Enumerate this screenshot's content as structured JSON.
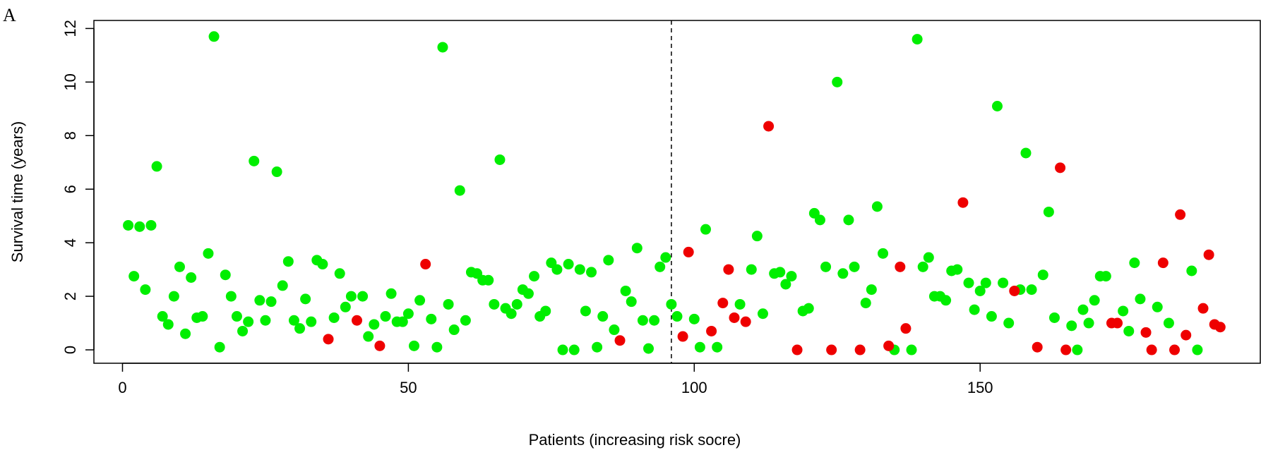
{
  "panel_label": "A",
  "chart_data": {
    "type": "scatter",
    "title": "",
    "xlabel": "Patients (increasing risk socre)",
    "ylabel": "Survival time (years)",
    "xlim": [
      -5,
      199
    ],
    "ylim": [
      -0.5,
      12.3
    ],
    "xticks": [
      0,
      50,
      100,
      150
    ],
    "yticks": [
      0,
      2,
      4,
      6,
      8,
      10,
      12
    ],
    "grid": false,
    "legend": "none",
    "cutoff_x": 96,
    "colors": {
      "green": "#00ee00",
      "red": "#ee0000"
    },
    "series": [
      {
        "color": "green",
        "points": [
          [
            1,
            4.65
          ],
          [
            2,
            2.75
          ],
          [
            3,
            4.6
          ],
          [
            4,
            2.25
          ],
          [
            5,
            4.65
          ],
          [
            6,
            6.85
          ],
          [
            7,
            1.25
          ],
          [
            8,
            0.95
          ],
          [
            9,
            2.0
          ],
          [
            10,
            3.1
          ],
          [
            11,
            0.6
          ],
          [
            12,
            2.7
          ],
          [
            13,
            1.2
          ],
          [
            14,
            1.25
          ],
          [
            15,
            3.6
          ],
          [
            16,
            11.7
          ],
          [
            17,
            0.1
          ],
          [
            18,
            2.8
          ],
          [
            19,
            2.0
          ],
          [
            20,
            1.25
          ],
          [
            21,
            0.7
          ],
          [
            22,
            1.05
          ],
          [
            23,
            7.05
          ],
          [
            24,
            1.85
          ],
          [
            25,
            1.1
          ],
          [
            26,
            1.8
          ],
          [
            27,
            6.65
          ],
          [
            28,
            2.4
          ],
          [
            29,
            3.3
          ],
          [
            30,
            1.1
          ],
          [
            31,
            0.8
          ],
          [
            32,
            1.9
          ],
          [
            33,
            1.05
          ],
          [
            34,
            3.35
          ],
          [
            35,
            3.2
          ],
          [
            37,
            1.2
          ],
          [
            38,
            2.85
          ],
          [
            39,
            1.6
          ],
          [
            40,
            2.0
          ],
          [
            42,
            2.0
          ],
          [
            43,
            0.5
          ],
          [
            44,
            0.95
          ],
          [
            46,
            1.25
          ],
          [
            47,
            2.1
          ],
          [
            48,
            1.05
          ],
          [
            49,
            1.05
          ],
          [
            50,
            1.35
          ],
          [
            51,
            0.15
          ],
          [
            52,
            1.85
          ],
          [
            54,
            1.15
          ],
          [
            55,
            0.1
          ],
          [
            56,
            11.3
          ],
          [
            57,
            1.7
          ],
          [
            58,
            0.75
          ],
          [
            59,
            5.95
          ],
          [
            60,
            1.1
          ],
          [
            61,
            2.9
          ],
          [
            62,
            2.85
          ],
          [
            63,
            2.6
          ],
          [
            64,
            2.6
          ],
          [
            65,
            1.7
          ],
          [
            66,
            7.1
          ],
          [
            67,
            1.55
          ],
          [
            68,
            1.35
          ],
          [
            69,
            1.7
          ],
          [
            70,
            2.25
          ],
          [
            71,
            2.1
          ],
          [
            72,
            2.75
          ],
          [
            73,
            1.25
          ],
          [
            74,
            1.45
          ],
          [
            75,
            3.25
          ],
          [
            76,
            3.0
          ],
          [
            77,
            0.0
          ],
          [
            78,
            3.2
          ],
          [
            79,
            0.0
          ],
          [
            80,
            3.0
          ],
          [
            81,
            1.45
          ],
          [
            82,
            2.9
          ],
          [
            83,
            0.1
          ],
          [
            84,
            1.25
          ],
          [
            85,
            3.35
          ],
          [
            86,
            0.75
          ],
          [
            88,
            2.2
          ],
          [
            89,
            1.8
          ],
          [
            90,
            3.8
          ],
          [
            91,
            1.1
          ],
          [
            92,
            0.05
          ],
          [
            93,
            1.1
          ],
          [
            94,
            3.1
          ],
          [
            95,
            3.45
          ],
          [
            96,
            1.7
          ],
          [
            97,
            1.25
          ],
          [
            100,
            1.15
          ],
          [
            101,
            0.1
          ],
          [
            102,
            4.5
          ],
          [
            104,
            0.1
          ],
          [
            108,
            1.7
          ],
          [
            110,
            3.0
          ],
          [
            111,
            4.25
          ],
          [
            112,
            1.35
          ],
          [
            114,
            2.85
          ],
          [
            115,
            2.9
          ],
          [
            116,
            2.45
          ],
          [
            117,
            2.75
          ],
          [
            119,
            1.45
          ],
          [
            120,
            1.55
          ],
          [
            121,
            5.1
          ],
          [
            122,
            4.85
          ],
          [
            123,
            3.1
          ],
          [
            125,
            10.0
          ],
          [
            126,
            2.85
          ],
          [
            127,
            4.85
          ],
          [
            128,
            3.1
          ],
          [
            130,
            1.75
          ],
          [
            131,
            2.25
          ],
          [
            132,
            5.35
          ],
          [
            133,
            3.6
          ],
          [
            135,
            0.0
          ],
          [
            138,
            0.0
          ],
          [
            139,
            11.6
          ],
          [
            140,
            3.1
          ],
          [
            141,
            3.45
          ],
          [
            142,
            2.0
          ],
          [
            143,
            2.0
          ],
          [
            144,
            1.85
          ],
          [
            145,
            2.95
          ],
          [
            146,
            3.0
          ],
          [
            148,
            2.5
          ],
          [
            149,
            1.5
          ],
          [
            150,
            2.2
          ],
          [
            151,
            2.5
          ],
          [
            152,
            1.25
          ],
          [
            153,
            9.1
          ],
          [
            154,
            2.5
          ],
          [
            155,
            1.0
          ],
          [
            157,
            2.25
          ],
          [
            158,
            7.35
          ],
          [
            159,
            2.25
          ],
          [
            161,
            2.8
          ],
          [
            162,
            5.15
          ],
          [
            163,
            1.2
          ],
          [
            166,
            0.9
          ],
          [
            167,
            0.0
          ],
          [
            168,
            1.5
          ],
          [
            169,
            1.0
          ],
          [
            170,
            1.85
          ],
          [
            171,
            2.75
          ],
          [
            172,
            2.75
          ],
          [
            175,
            1.45
          ],
          [
            176,
            0.7
          ],
          [
            177,
            3.25
          ],
          [
            178,
            1.9
          ],
          [
            181,
            1.6
          ],
          [
            183,
            1.0
          ],
          [
            187,
            2.95
          ],
          [
            188,
            0.0
          ]
        ]
      },
      {
        "color": "red",
        "points": [
          [
            36,
            0.4
          ],
          [
            41,
            1.1
          ],
          [
            45,
            0.15
          ],
          [
            53,
            3.2
          ],
          [
            87,
            0.35
          ],
          [
            98,
            0.5
          ],
          [
            99,
            3.65
          ],
          [
            103,
            0.7
          ],
          [
            105,
            1.75
          ],
          [
            106,
            3.0
          ],
          [
            107,
            1.2
          ],
          [
            109,
            1.05
          ],
          [
            113,
            8.35
          ],
          [
            118,
            0.0
          ],
          [
            124,
            0.0
          ],
          [
            129,
            0.0
          ],
          [
            134,
            0.15
          ],
          [
            136,
            3.1
          ],
          [
            137,
            0.8
          ],
          [
            147,
            5.5
          ],
          [
            156,
            2.2
          ],
          [
            160,
            0.1
          ],
          [
            164,
            6.8
          ],
          [
            165,
            0.0
          ],
          [
            173,
            1.0
          ],
          [
            174,
            1.0
          ],
          [
            179,
            0.65
          ],
          [
            180,
            0.0
          ],
          [
            182,
            3.25
          ],
          [
            184,
            0.0
          ],
          [
            185,
            5.05
          ],
          [
            186,
            0.55
          ],
          [
            189,
            1.55
          ],
          [
            190,
            3.55
          ],
          [
            191,
            0.95
          ],
          [
            192,
            0.85
          ]
        ]
      }
    ]
  }
}
